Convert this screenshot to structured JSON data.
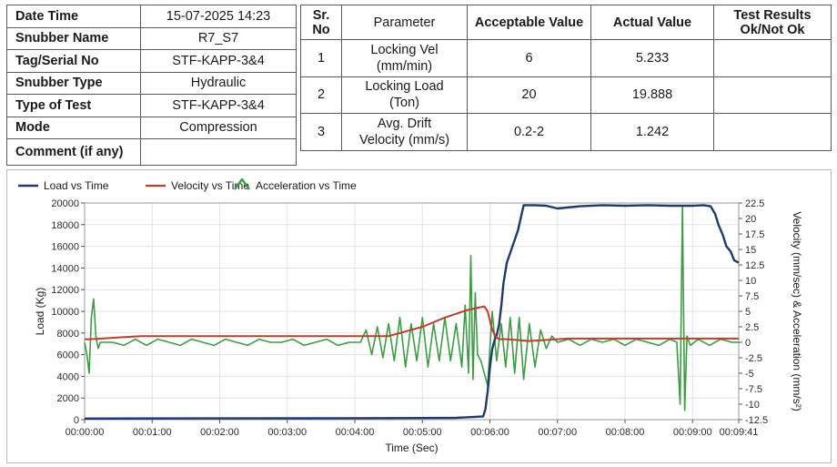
{
  "info_table": {
    "rows": [
      {
        "label": "Date Time",
        "value": "15-07-2025 14:23"
      },
      {
        "label": "Snubber Name",
        "value": "R7_S7"
      },
      {
        "label": "Tag/Serial No",
        "value": "STF-KAPP-3&4"
      },
      {
        "label": "Snubber Type",
        "value": "Hydraulic"
      },
      {
        "label": "Type of Test",
        "value": "STF-KAPP-3&4"
      },
      {
        "label": "Mode",
        "value": "Compression"
      },
      {
        "label": "Comment (if any)",
        "value": ""
      }
    ]
  },
  "results_table": {
    "headers": {
      "sr_no_line1": "Sr.",
      "sr_no_line2": "No",
      "parameter": "Parameter",
      "acceptable": "Acceptable Value",
      "actual": "Actual Value",
      "result_line1": "Test Results",
      "result_line2": "Ok/Not Ok"
    },
    "rows": [
      {
        "sr": "1",
        "param_line1": "Locking Vel",
        "param_line2": "(mm/min)",
        "acceptable": "6",
        "actual": "5.233",
        "result": ""
      },
      {
        "sr": "2",
        "param_line1": "Locking Load",
        "param_line2": "(Ton)",
        "acceptable": "20",
        "actual": "19.888",
        "result": ""
      },
      {
        "sr": "3",
        "param_line1": "Avg. Drift",
        "param_line2": "Velocity (mm/s)",
        "acceptable": "0.2-2",
        "actual": "1.242",
        "result": ""
      }
    ]
  },
  "colors": {
    "load": "#1f3a68",
    "velocity": "#b5412e",
    "acceleration": "#3f9a45"
  },
  "chart_data": {
    "type": "line",
    "xlabel": "Time (Sec)",
    "ylabel_left": "Load (Kg)",
    "ylabel_right": "Velocity (mm/sec) & Acceleration (mm/s²)",
    "xlim": [
      0,
      581
    ],
    "ylim_left": [
      0,
      20000
    ],
    "ylim_right": [
      -12.5,
      22.5
    ],
    "x_ticks": [
      0,
      60,
      120,
      180,
      240,
      300,
      360,
      420,
      480,
      540,
      581
    ],
    "x_tick_labels": [
      "00:00:00",
      "00:01:00",
      "00:02:00",
      "00:03:00",
      "00:04:00",
      "00:05:00",
      "00:06:00",
      "00:07:00",
      "00:08:00",
      "00:09:00",
      "00:09:41"
    ],
    "y_left_ticks": [
      0,
      2000,
      4000,
      6000,
      8000,
      10000,
      12000,
      14000,
      16000,
      18000,
      20000
    ],
    "y_right_ticks": [
      -12.5,
      -10,
      -7.5,
      -5,
      -2.5,
      0,
      2.5,
      5,
      7.5,
      10,
      12.5,
      15,
      17.5,
      20,
      22.5
    ],
    "legend_position": "top-left",
    "grid": true,
    "series": [
      {
        "name": "Load vs Time",
        "axis": "left",
        "x": [
          0,
          100,
          200,
          270,
          300,
          330,
          354,
          356,
          358,
          360,
          362,
          364,
          366,
          368,
          370,
          372,
          375,
          380,
          385,
          390,
          400,
          410,
          420,
          440,
          460,
          480,
          500,
          520,
          540,
          550,
          556,
          560,
          563,
          567,
          570,
          574,
          577,
          581
        ],
        "y": [
          100,
          120,
          130,
          140,
          150,
          170,
          300,
          1000,
          2600,
          4800,
          6500,
          7300,
          7800,
          8700,
          10400,
          12600,
          14500,
          16000,
          17500,
          19800,
          19800,
          19750,
          19500,
          19700,
          19800,
          19750,
          19800,
          19750,
          19750,
          19800,
          19700,
          19000,
          18000,
          17000,
          16000,
          15500,
          14700,
          14500
        ]
      },
      {
        "name": "Velocity vs Time",
        "axis": "right",
        "x": [
          0,
          5,
          50,
          100,
          200,
          270,
          280,
          300,
          320,
          340,
          350,
          355,
          358,
          362,
          365,
          368,
          375,
          395,
          420,
          430,
          460,
          500,
          540,
          581
        ],
        "y": [
          0.5,
          0.5,
          1,
          1,
          1,
          1,
          1.5,
          2.5,
          4,
          5.2,
          5.6,
          5.8,
          5,
          2,
          1,
          0.5,
          0.5,
          0.2,
          0.5,
          0.6,
          0.6,
          0.6,
          0.6,
          0.6
        ]
      },
      {
        "name": "Acceleration vs Time",
        "axis": "right",
        "x": [
          0,
          2,
          4,
          6,
          8,
          10,
          12,
          14,
          18,
          25,
          35,
          45,
          55,
          65,
          75,
          85,
          95,
          105,
          115,
          125,
          135,
          145,
          155,
          165,
          175,
          185,
          195,
          205,
          215,
          225,
          235,
          245,
          250,
          255,
          260,
          265,
          270,
          275,
          280,
          285,
          290,
          295,
          300,
          305,
          310,
          315,
          320,
          325,
          330,
          335,
          338,
          341,
          343,
          345,
          347,
          349,
          352,
          355,
          358,
          362,
          366,
          370,
          374,
          378,
          382,
          386,
          390,
          395,
          400,
          405,
          410,
          415,
          420,
          430,
          440,
          450,
          460,
          470,
          480,
          490,
          500,
          510,
          520,
          526,
          529,
          531,
          533,
          535,
          538,
          545,
          555,
          565,
          575,
          581
        ],
        "y": [
          0,
          -2,
          -5,
          4,
          7,
          1,
          -1,
          0,
          0,
          0,
          -0.5,
          0.5,
          -0.5,
          0.5,
          0,
          -0.5,
          0.5,
          0,
          -0.5,
          0.5,
          0,
          -0.5,
          0.5,
          0,
          0,
          0.5,
          -0.5,
          0,
          0.5,
          -0.5,
          0,
          0,
          2,
          -2,
          2.5,
          -2.5,
          3,
          -3,
          4,
          -4,
          3,
          -3,
          4,
          -4,
          3,
          -3,
          4,
          -3,
          3,
          -4,
          6,
          -5,
          14,
          -6,
          8,
          -2,
          -3,
          -5,
          -7,
          5,
          -3,
          3,
          -4,
          4,
          -5,
          4,
          -6,
          3,
          -4,
          2,
          -1,
          1,
          0,
          0.5,
          -0.5,
          0.5,
          0,
          0.5,
          -0.5,
          0.5,
          0,
          -0.5,
          0.5,
          0,
          -10,
          22,
          -11,
          1,
          -0.5,
          0.5,
          -0.5,
          0.5,
          0,
          0
        ]
      }
    ]
  }
}
